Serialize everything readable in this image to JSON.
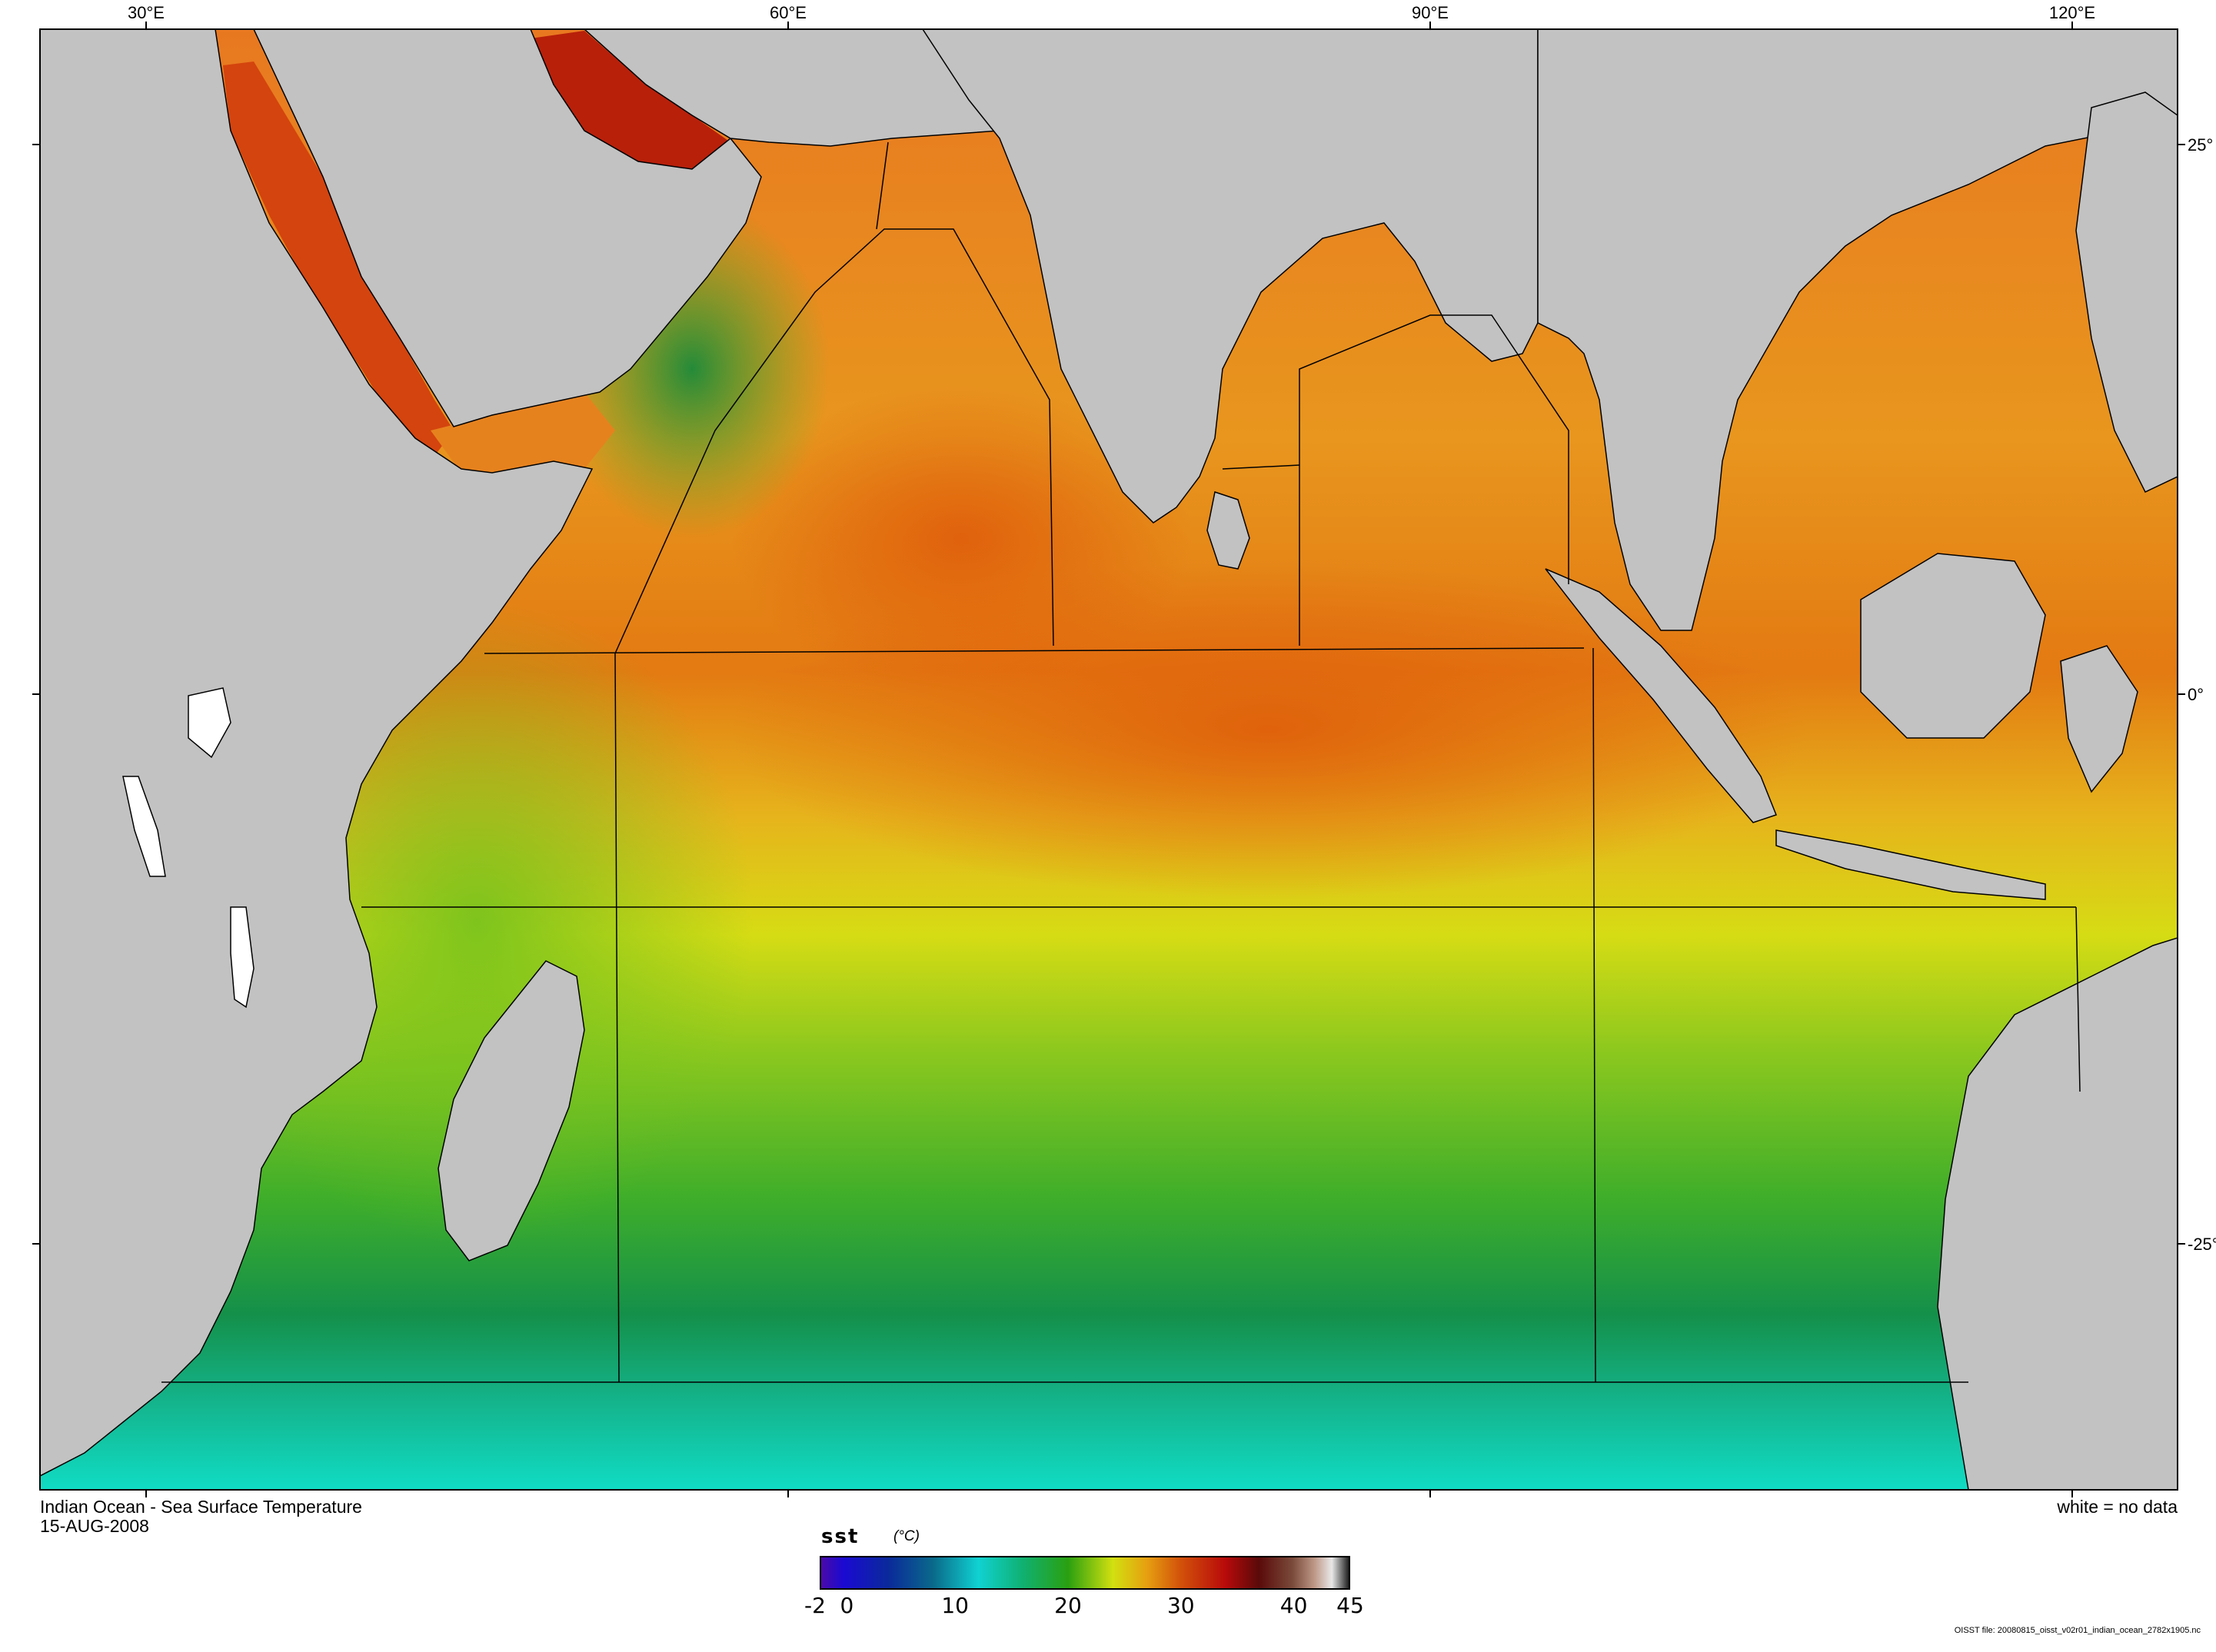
{
  "map": {
    "lon_axis": [
      {
        "id": "lon-30",
        "label": "30°E",
        "lon": 30
      },
      {
        "id": "lon-60",
        "label": "60°E",
        "lon": 60
      },
      {
        "id": "lon-90",
        "label": "90°E",
        "lon": 90
      },
      {
        "id": "lon-120",
        "label": "120°E",
        "lon": 120
      }
    ],
    "lat_axis": [
      {
        "id": "lat-25n",
        "label": "25°",
        "lat": 25
      },
      {
        "id": "lat-0",
        "label": "0°",
        "lat": 0
      },
      {
        "id": "lat-25s",
        "label": "-25°",
        "lat": -25
      }
    ],
    "land_color": "#c2c2c2",
    "no_data_color": "#ffffff"
  },
  "title_line1": "Indian Ocean - Sea Surface Temperature",
  "title_line2": "15-AUG-2008",
  "no_data_note": "white = no data",
  "colorbar": {
    "variable": "sst",
    "unit": "(°C)",
    "min": -2,
    "max": 45,
    "ticks": [
      {
        "label": "-2",
        "value": -2
      },
      {
        "label": "0",
        "value": 0
      },
      {
        "label": "10",
        "value": 10
      },
      {
        "label": "20",
        "value": 20
      },
      {
        "label": "30",
        "value": 30
      },
      {
        "label": "40",
        "value": 40
      },
      {
        "label": "45",
        "value": 45
      }
    ]
  },
  "source_note": "OISST file: 20080815_oisst_v02r01_indian_ocean_2782x1905.nc"
}
